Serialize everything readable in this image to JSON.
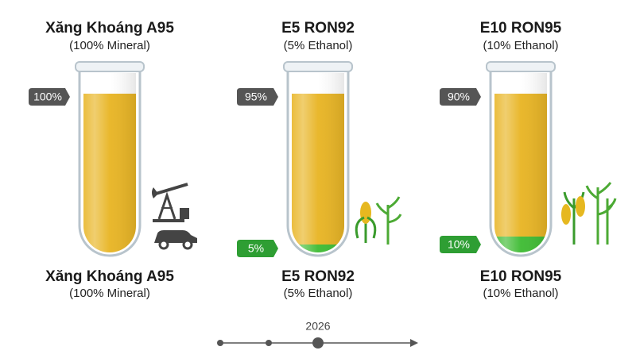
{
  "tubes": [
    {
      "title": "Xăng Khoáng A95",
      "subtitle": "(100% Mineral)",
      "bottom_title": "Xăng Khoáng A95",
      "bottom_subtitle": "(100% Mineral)",
      "segments": [
        {
          "value": 100,
          "label": "100%",
          "color": "#e8b422",
          "tag_color": "#555555"
        }
      ]
    },
    {
      "title": "E5 RON92",
      "subtitle": "(5% Ethanol)",
      "bottom_title": "E5 RON92",
      "bottom_subtitle": "(5% Ethanol)",
      "segments": [
        {
          "value": 5,
          "label": "5%",
          "color": "#3dbb32",
          "tag_color": "#2e9e33"
        },
        {
          "value": 95,
          "label": "95%",
          "color": "#e8b422",
          "tag_color": "#555555"
        }
      ]
    },
    {
      "title": "E10 RON95",
      "subtitle": "(10% Ethanol)",
      "bottom_title": "E10 RON95",
      "bottom_subtitle": "(10% Ethanol)",
      "segments": [
        {
          "value": 10,
          "label": "10%",
          "color": "#3dbb32",
          "tag_color": "#2e9e33"
        },
        {
          "value": 90,
          "label": "90%",
          "color": "#e8b422",
          "tag_color": "#555555"
        }
      ]
    }
  ],
  "timeline": {
    "label": "2026"
  }
}
